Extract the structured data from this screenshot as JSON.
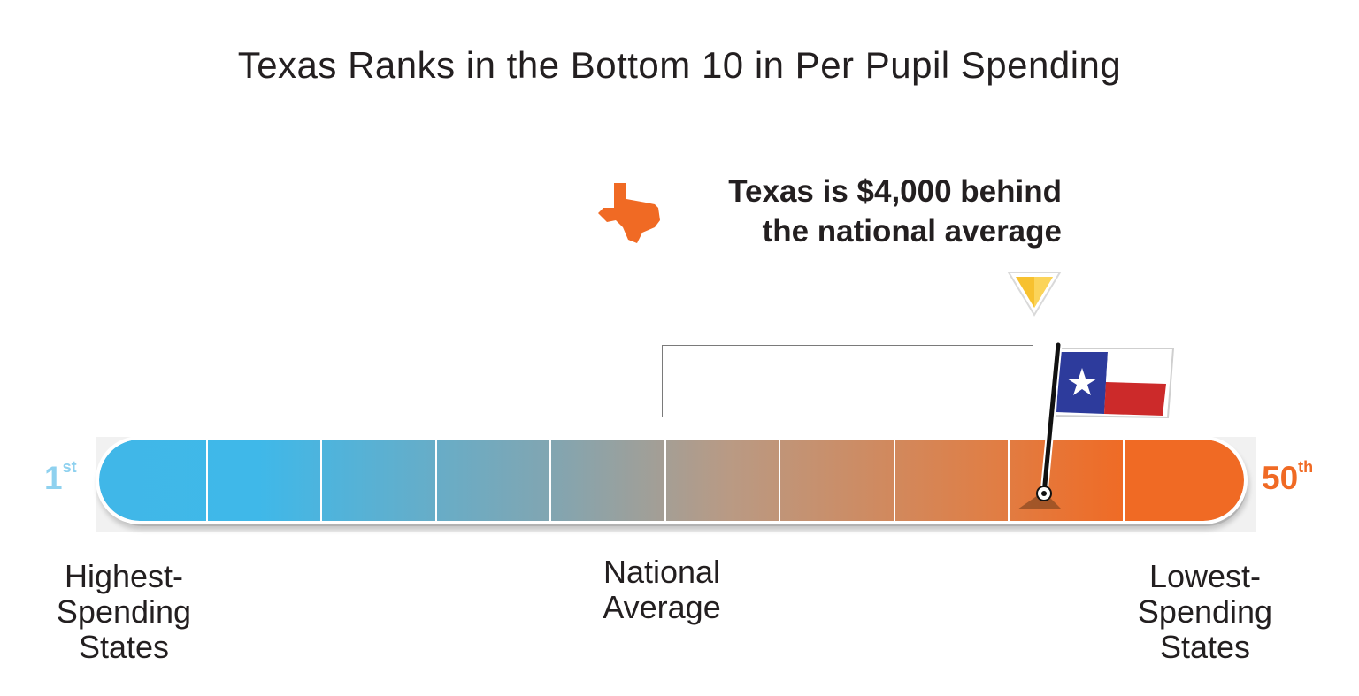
{
  "title": "Texas Ranks in the Bottom 10 in Per Pupil Spending",
  "callout": {
    "line1": "Texas is $4,000 behind",
    "line2": "the national average"
  },
  "scale": {
    "start_rank": "1",
    "start_suffix": "st",
    "end_rank": "50",
    "end_suffix": "th",
    "segments": 10,
    "texas_position_fraction": 0.83,
    "national_average_fraction": 0.5
  },
  "labels": {
    "high_line1": "Highest-",
    "high_line2": "Spending",
    "high_line3": "States",
    "nat_line1": "National",
    "nat_line2": "Average",
    "low_line1": "Lowest-",
    "low_line2": "Spending",
    "low_line3": "States"
  },
  "colors": {
    "high_blue": "#3fb8e9",
    "low_orange": "#f06a24",
    "texas_icon": "#f06a24",
    "pointer_yellow": "#f7c12f",
    "flag_blue": "#2d3b9c",
    "flag_red": "#cc2a2a"
  },
  "icons": [
    "texas-state-icon",
    "down-triangle-pointer-icon",
    "texas-flag-icon"
  ]
}
